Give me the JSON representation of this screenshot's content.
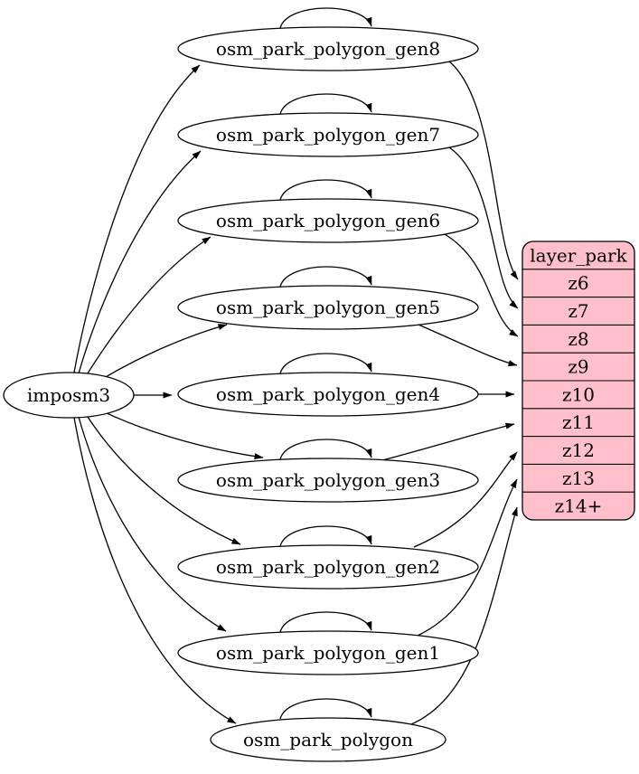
{
  "diagram": {
    "type": "graphviz-etl-dependency",
    "colors": {
      "layer_fill": "#ffc0cb",
      "table_fill": "#ffffff",
      "stroke": "#000000"
    },
    "source": {
      "id": "imposm3",
      "label": "imposm3"
    },
    "tables": [
      {
        "id": "osm_park_polygon_gen8",
        "label": "osm_park_polygon_gen8"
      },
      {
        "id": "osm_park_polygon_gen7",
        "label": "osm_park_polygon_gen7"
      },
      {
        "id": "osm_park_polygon_gen6",
        "label": "osm_park_polygon_gen6"
      },
      {
        "id": "osm_park_polygon_gen5",
        "label": "osm_park_polygon_gen5"
      },
      {
        "id": "osm_park_polygon_gen4",
        "label": "osm_park_polygon_gen4"
      },
      {
        "id": "osm_park_polygon_gen3",
        "label": "osm_park_polygon_gen3"
      },
      {
        "id": "osm_park_polygon_gen2",
        "label": "osm_park_polygon_gen2"
      },
      {
        "id": "osm_park_polygon_gen1",
        "label": "osm_park_polygon_gen1"
      },
      {
        "id": "osm_park_polygon",
        "label": "osm_park_polygon"
      }
    ],
    "layer": {
      "title": "layer_park",
      "rows": [
        "z6",
        "z7",
        "z8",
        "z9",
        "z10",
        "z11",
        "z12",
        "z13",
        "z14+"
      ]
    },
    "edges": {
      "source_to_tables": [
        "osm_park_polygon_gen8",
        "osm_park_polygon_gen7",
        "osm_park_polygon_gen6",
        "osm_park_polygon_gen5",
        "osm_park_polygon_gen4",
        "osm_park_polygon_gen3",
        "osm_park_polygon_gen2",
        "osm_park_polygon_gen1",
        "osm_park_polygon"
      ],
      "self_loops": [
        "osm_park_polygon_gen8",
        "osm_park_polygon_gen7",
        "osm_park_polygon_gen6",
        "osm_park_polygon_gen5",
        "osm_park_polygon_gen4",
        "osm_park_polygon_gen3",
        "osm_park_polygon_gen2",
        "osm_park_polygon_gen1",
        "osm_park_polygon"
      ],
      "table_to_rows": [
        {
          "from": "osm_park_polygon_gen8",
          "to": "z6"
        },
        {
          "from": "osm_park_polygon_gen7",
          "to": "z7"
        },
        {
          "from": "osm_park_polygon_gen6",
          "to": "z8"
        },
        {
          "from": "osm_park_polygon_gen5",
          "to": "z9"
        },
        {
          "from": "osm_park_polygon_gen4",
          "to": "z10"
        },
        {
          "from": "osm_park_polygon_gen3",
          "to": "z11"
        },
        {
          "from": "osm_park_polygon_gen2",
          "to": "z12"
        },
        {
          "from": "osm_park_polygon_gen1",
          "to": "z13"
        },
        {
          "from": "osm_park_polygon",
          "to": "z14+"
        }
      ]
    }
  }
}
